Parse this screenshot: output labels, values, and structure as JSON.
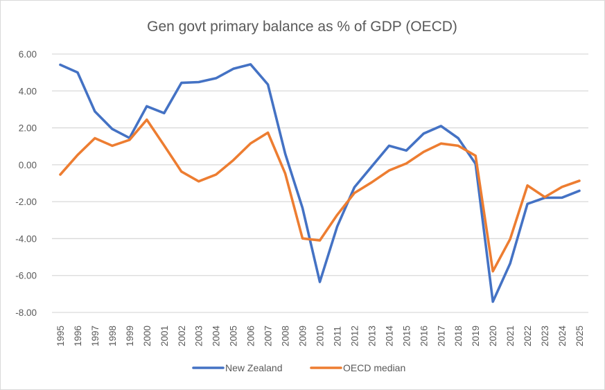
{
  "chart_data": {
    "type": "line",
    "title": "Gen govt primary balance as % of GDP (OECD)",
    "xlabel": "",
    "ylabel": "",
    "ylim": [
      -8,
      6
    ],
    "yticks": [
      6,
      4,
      2,
      0,
      -2,
      -4,
      -6,
      -8
    ],
    "ytick_labels": [
      "6.00",
      "4.00",
      "2.00",
      "0.00",
      "-2.00",
      "-4.00",
      "-6.00",
      "-8.00"
    ],
    "grid": true,
    "legend_position": "bottom",
    "x": [
      "1995",
      "1996",
      "1997",
      "1998",
      "1999",
      "2000",
      "2001",
      "2002",
      "2003",
      "2004",
      "2005",
      "2006",
      "2007",
      "2008",
      "2009",
      "2010",
      "2011",
      "2012",
      "2013",
      "2014",
      "2015",
      "2016",
      "2017",
      "2018",
      "2019",
      "2020",
      "2021",
      "2022",
      "2023",
      "2024",
      "2025"
    ],
    "series": [
      {
        "name": "New Zealand",
        "color": "#4472c4",
        "values": [
          5.42,
          5.0,
          2.89,
          1.94,
          1.45,
          3.17,
          2.8,
          4.44,
          4.48,
          4.69,
          5.2,
          5.44,
          4.35,
          0.59,
          -2.34,
          -6.35,
          -3.35,
          -1.22,
          -0.09,
          1.03,
          0.77,
          1.69,
          2.1,
          1.44,
          0.05,
          -7.42,
          -5.35,
          -2.12,
          -1.79,
          -1.78,
          -1.41
        ]
      },
      {
        "name": "OECD median",
        "color": "#ed7d31",
        "values": [
          -0.53,
          0.53,
          1.44,
          1.03,
          1.35,
          2.44,
          1.05,
          -0.37,
          -0.9,
          -0.53,
          0.25,
          1.16,
          1.74,
          -0.48,
          -3.99,
          -4.1,
          -2.72,
          -1.53,
          -0.95,
          -0.31,
          0.07,
          0.7,
          1.15,
          1.03,
          0.49,
          -5.77,
          -4.03,
          -1.12,
          -1.75,
          -1.2,
          -0.87
        ]
      }
    ]
  }
}
